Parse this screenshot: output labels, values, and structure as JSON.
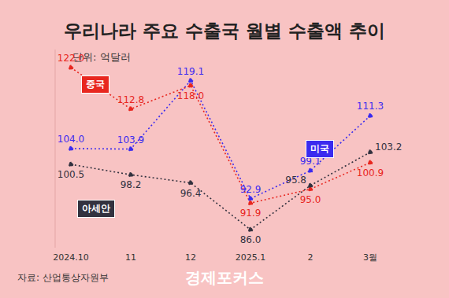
{
  "chart_data": {
    "type": "line",
    "title": "우리나라 주요 수출국 월별 수출액 추이",
    "subtitle": "단위: 억달러",
    "source": "자료: 산업통상자원부",
    "watermark": "경제포커스",
    "categories": [
      "2024.10",
      "11",
      "12",
      "2025.1",
      "2",
      "3월"
    ],
    "series": [
      {
        "name": "중국",
        "color": "#e8271f",
        "values": [
          122.0,
          112.8,
          118.0,
          91.9,
          95.0,
          100.9
        ],
        "value_labels": [
          "122.0",
          "112.8",
          "118.0",
          "91.9",
          "95.0",
          "100.9"
        ]
      },
      {
        "name": "미국",
        "color": "#3b2bef",
        "values": [
          104.0,
          103.9,
          119.1,
          92.9,
          99.1,
          111.3
        ],
        "value_labels": [
          "104.0",
          "103.9",
          "119.1",
          "92.9",
          "99.1",
          "111.3"
        ]
      },
      {
        "name": "아세안",
        "color": "#33323f",
        "values": [
          100.5,
          98.2,
          96.4,
          86.0,
          95.8,
          103.2
        ],
        "value_labels": [
          "100.5",
          "98.2",
          "96.4",
          "86.0",
          "95.8",
          "103.2"
        ]
      }
    ],
    "ylim": [
      82,
      126
    ],
    "tick_labels": "x",
    "grid": false,
    "data_labels": true,
    "marker": "circle",
    "line_style": "dotted"
  }
}
